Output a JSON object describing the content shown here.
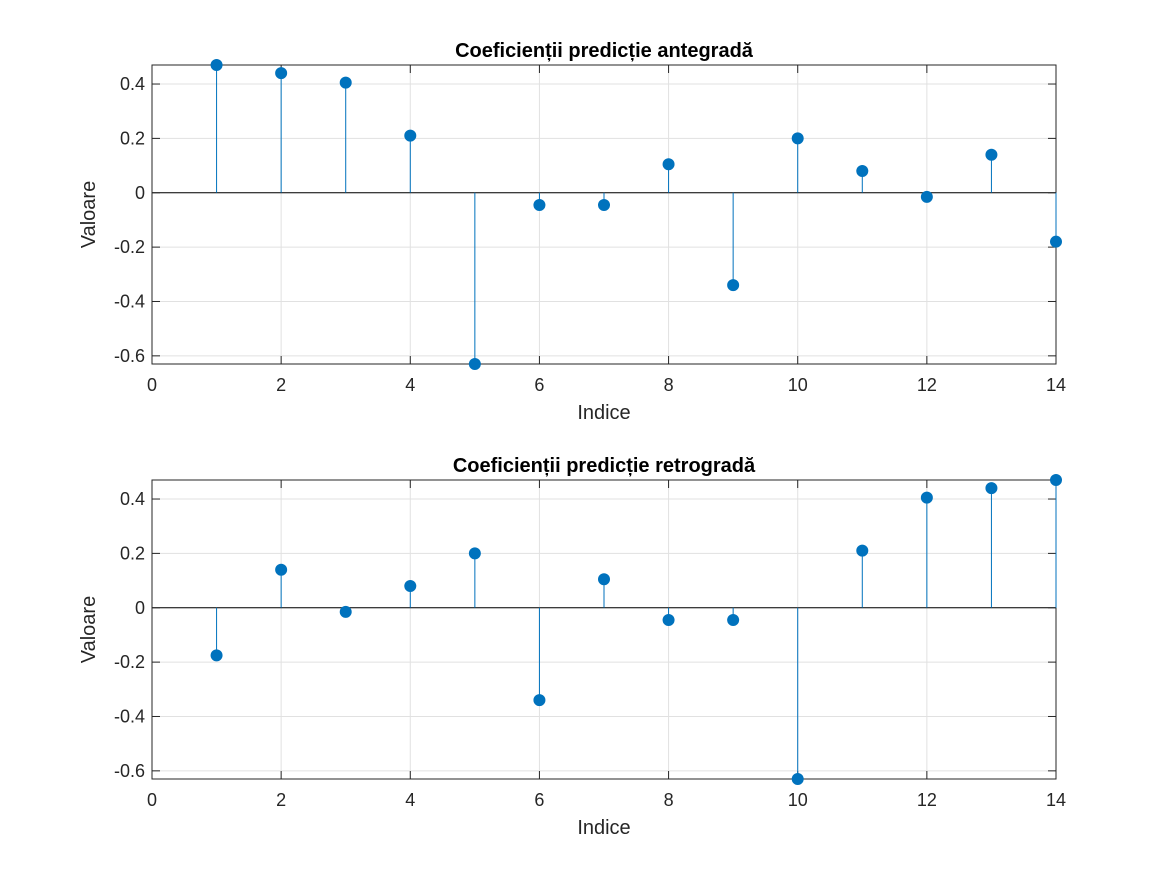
{
  "chart_data": [
    {
      "type": "stem",
      "title": "Coeficienții predicție antegradă",
      "xlabel": "Indice",
      "ylabel": "Valoare",
      "xlim": [
        0,
        14
      ],
      "ylim": [
        -0.63,
        0.47
      ],
      "xticks": [
        0,
        2,
        4,
        6,
        8,
        10,
        12,
        14
      ],
      "yticks": [
        -0.6,
        -0.4,
        -0.2,
        0,
        0.2,
        0.4
      ],
      "ytick_labels": [
        "-0.6",
        "-0.4",
        "-0.2",
        "0",
        "0.2",
        "0.4"
      ],
      "grid": true,
      "color": "#0072BD",
      "x": [
        1,
        2,
        3,
        4,
        5,
        6,
        7,
        8,
        9,
        10,
        11,
        12,
        13,
        14
      ],
      "y": [
        0.47,
        0.44,
        0.405,
        0.21,
        -0.63,
        -0.045,
        -0.045,
        0.105,
        -0.34,
        0.2,
        0.08,
        -0.015,
        0.14,
        -0.18
      ]
    },
    {
      "type": "stem",
      "title": "Coeficienții predicție retrogradă",
      "xlabel": "Indice",
      "ylabel": "Valoare",
      "xlim": [
        0,
        14
      ],
      "ylim": [
        -0.63,
        0.47
      ],
      "xticks": [
        0,
        2,
        4,
        6,
        8,
        10,
        12,
        14
      ],
      "yticks": [
        -0.6,
        -0.4,
        -0.2,
        0,
        0.2,
        0.4
      ],
      "ytick_labels": [
        "-0.6",
        "-0.4",
        "-0.2",
        "0",
        "0.2",
        "0.4"
      ],
      "grid": true,
      "color": "#0072BD",
      "x": [
        1,
        2,
        3,
        4,
        5,
        6,
        7,
        8,
        9,
        10,
        11,
        12,
        13,
        14
      ],
      "y": [
        -0.175,
        0.14,
        -0.015,
        0.08,
        0.2,
        -0.34,
        0.105,
        -0.045,
        -0.045,
        -0.63,
        0.21,
        0.405,
        0.44,
        0.47
      ]
    }
  ]
}
